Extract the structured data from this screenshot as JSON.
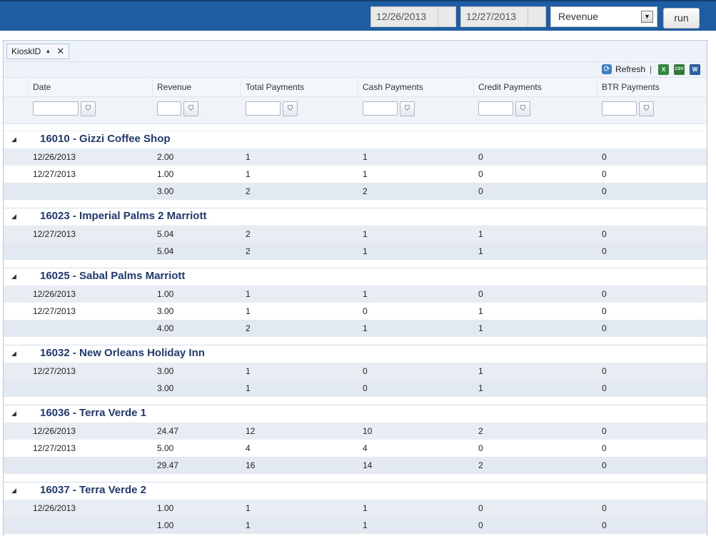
{
  "toolbar": {
    "start_date": "12/26/2013",
    "end_date": "12/27/2013",
    "report_select": "Revenue",
    "run_label": "run"
  },
  "grouping": {
    "chip_label": "KioskID"
  },
  "commands": {
    "refresh_label": "Refresh",
    "separator": "|"
  },
  "columns": [
    "Date",
    "Revenue",
    "Total Payments",
    "Cash Payments",
    "Credit Payments",
    "BTR Payments"
  ],
  "groups": [
    {
      "title": "16010 - Gizzi Coffee Shop",
      "rows": [
        [
          "12/26/2013",
          "2.00",
          "1",
          "1",
          "0",
          "0"
        ],
        [
          "12/27/2013",
          "1.00",
          "1",
          "1",
          "0",
          "0"
        ]
      ],
      "total": [
        "",
        "3.00",
        "2",
        "2",
        "0",
        "0"
      ]
    },
    {
      "title": "16023 - Imperial Palms 2 Marriott",
      "rows": [
        [
          "12/27/2013",
          "5.04",
          "2",
          "1",
          "1",
          "0"
        ]
      ],
      "total": [
        "",
        "5.04",
        "2",
        "1",
        "1",
        "0"
      ]
    },
    {
      "title": "16025 - Sabal Palms Marriott",
      "rows": [
        [
          "12/26/2013",
          "1.00",
          "1",
          "1",
          "0",
          "0"
        ],
        [
          "12/27/2013",
          "3.00",
          "1",
          "0",
          "1",
          "0"
        ]
      ],
      "total": [
        "",
        "4.00",
        "2",
        "1",
        "1",
        "0"
      ]
    },
    {
      "title": "16032 - New Orleans Holiday Inn",
      "rows": [
        [
          "12/27/2013",
          "3.00",
          "1",
          "0",
          "1",
          "0"
        ]
      ],
      "total": [
        "",
        "3.00",
        "1",
        "0",
        "1",
        "0"
      ]
    },
    {
      "title": "16036 - Terra Verde 1",
      "rows": [
        [
          "12/26/2013",
          "24.47",
          "12",
          "10",
          "2",
          "0"
        ],
        [
          "12/27/2013",
          "5.00",
          "4",
          "4",
          "0",
          "0"
        ]
      ],
      "total": [
        "",
        "29.47",
        "16",
        "14",
        "2",
        "0"
      ]
    },
    {
      "title": "16037 - Terra Verde 2",
      "rows": [
        [
          "12/26/2013",
          "1.00",
          "1",
          "1",
          "0",
          "0"
        ]
      ],
      "total": [
        "",
        "1.00",
        "1",
        "1",
        "0",
        "0"
      ]
    }
  ],
  "icons": {
    "refresh": "refresh-icon",
    "excel": "excel-export-icon",
    "csv": "csv-export-icon",
    "word": "word-export-icon",
    "filter": "filter-icon",
    "collapse": "collapse-triangle-icon"
  },
  "colors": {
    "topbar": "#1f5da2",
    "group_title": "#1f3a73",
    "alt_row": "#e8edf3"
  }
}
